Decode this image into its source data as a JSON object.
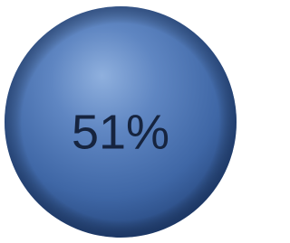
{
  "label": "51%"
}
